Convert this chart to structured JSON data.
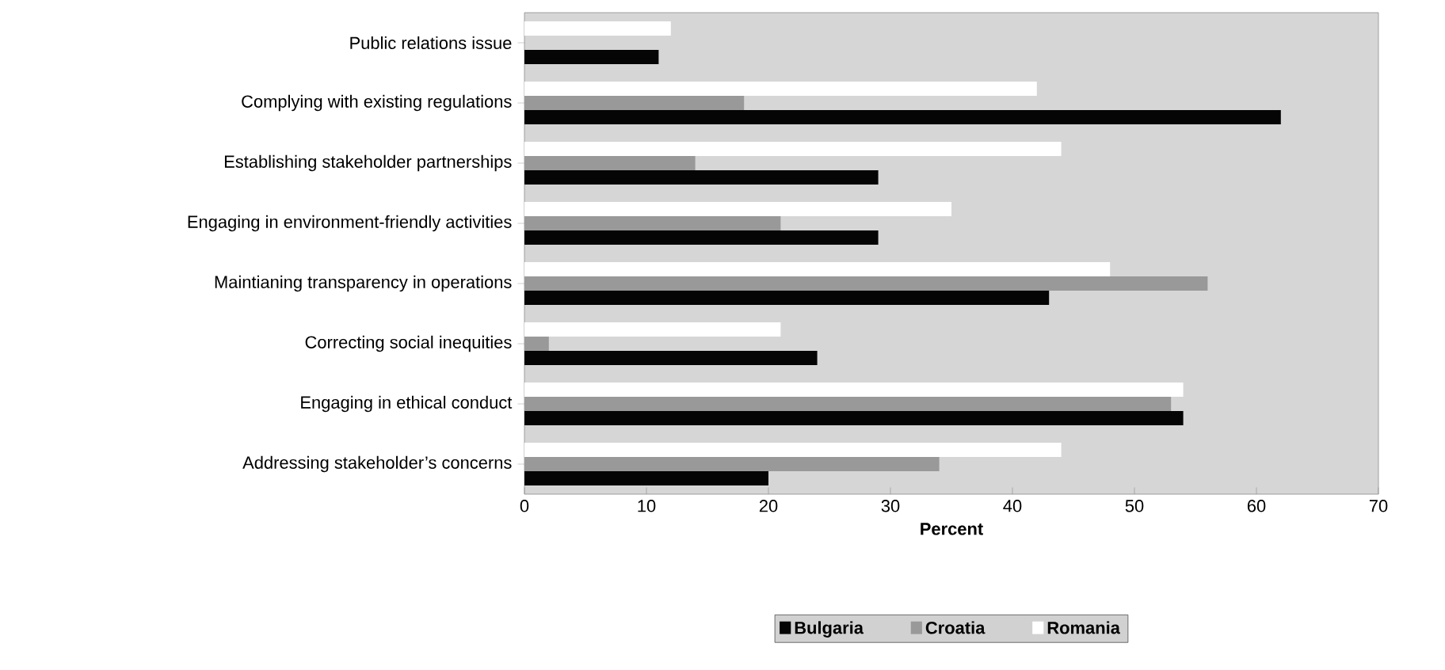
{
  "chart_data": {
    "type": "bar",
    "orientation": "horizontal",
    "xlabel": "Percent",
    "categories": [
      "Public relations issue",
      "Complying with existing regulations",
      "Establishing stakeholder partnerships",
      "Engaging in environment-friendly activities",
      "Maintianing transparency in operations",
      "Correcting social inequities",
      "Engaging in ethical conduct",
      "Addressing stakeholder’s concerns"
    ],
    "series": [
      {
        "name": "Bulgaria",
        "color": "#050505",
        "values": [
          11,
          62,
          29,
          29,
          43,
          24,
          54,
          20
        ]
      },
      {
        "name": "Croatia",
        "color": "#999999",
        "values": [
          0,
          18,
          14,
          21,
          56,
          2,
          53,
          34
        ]
      },
      {
        "name": "Romania",
        "color": "#ffffff",
        "values": [
          12,
          42,
          44,
          35,
          48,
          21,
          54,
          44
        ]
      }
    ],
    "xlim": [
      0,
      70
    ],
    "xticks": [
      0,
      10,
      20,
      30,
      40,
      50,
      60,
      70
    ],
    "legend": "bottom",
    "grid": false
  }
}
